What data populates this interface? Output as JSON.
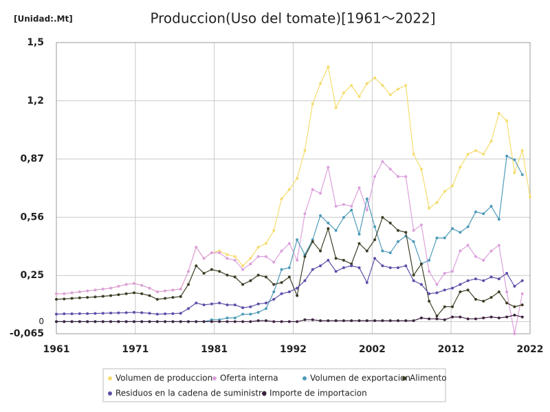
{
  "chart_data": {
    "type": "line",
    "title": "Produccion(Uso del tomate)[1961～2022]",
    "unit_label": "[Unidad:.Mt]",
    "x": [
      1961,
      1962,
      1963,
      1964,
      1965,
      1966,
      1967,
      1968,
      1969,
      1970,
      1971,
      1972,
      1973,
      1974,
      1975,
      1976,
      1977,
      1978,
      1979,
      1980,
      1981,
      1982,
      1983,
      1984,
      1985,
      1986,
      1987,
      1988,
      1989,
      1990,
      1991,
      1992,
      1993,
      1994,
      1995,
      1996,
      1997,
      1998,
      1999,
      2000,
      2001,
      2002,
      2003,
      2004,
      2005,
      2006,
      2007,
      2008,
      2009,
      2010,
      2011,
      2012,
      2013,
      2014,
      2015,
      2016,
      2017,
      2018,
      2019,
      2020,
      2021,
      2022
    ],
    "xlim": [
      1961,
      2022
    ],
    "xticks": [
      1961,
      {
        "value": 1971.17,
        "label": "1971"
      },
      {
        "value": 1981.33,
        "label": "1981"
      },
      {
        "value": 1991.5,
        "label": "1992"
      },
      {
        "value": 2001.67,
        "label": "2002"
      },
      {
        "value": 2011.83,
        "label": "2012"
      },
      2022
    ],
    "ylim": [
      -0.065,
      1.5
    ],
    "yticks": [
      {
        "value": -0.065,
        "label": "-0,065"
      },
      0,
      {
        "value": 0.248,
        "label": "0,25"
      },
      {
        "value": 0.561,
        "label": "0,56"
      },
      {
        "value": 0.874,
        "label": "0,87"
      },
      {
        "value": 1.187,
        "label": "1,2"
      },
      {
        "value": 1.5,
        "label": "1,5"
      }
    ],
    "grid": true,
    "legend": "bottom",
    "series": [
      {
        "name": "Volumen de produccion",
        "color": "#f5dc6e",
        "values": [
          0.15,
          0.15,
          0.155,
          0.16,
          0.165,
          0.17,
          0.175,
          0.18,
          0.19,
          0.2,
          0.205,
          0.195,
          0.18,
          0.16,
          0.165,
          0.17,
          0.175,
          0.27,
          0.4,
          0.34,
          0.37,
          0.38,
          0.36,
          0.35,
          0.3,
          0.34,
          0.4,
          0.42,
          0.49,
          0.66,
          0.71,
          0.77,
          0.92,
          1.17,
          1.28,
          1.37,
          1.15,
          1.23,
          1.27,
          1.21,
          1.28,
          1.31,
          1.27,
          1.22,
          1.25,
          1.27,
          0.9,
          0.82,
          0.61,
          0.64,
          0.7,
          0.73,
          0.83,
          0.9,
          0.92,
          0.9,
          0.97,
          1.12,
          1.08,
          0.8,
          0.92,
          0.67
        ]
      },
      {
        "name": "Oferta interna",
        "color": "#dca0dc",
        "values": [
          0.15,
          0.15,
          0.155,
          0.16,
          0.165,
          0.17,
          0.175,
          0.18,
          0.19,
          0.2,
          0.205,
          0.195,
          0.18,
          0.16,
          0.165,
          0.17,
          0.175,
          0.27,
          0.4,
          0.34,
          0.37,
          0.37,
          0.34,
          0.33,
          0.28,
          0.31,
          0.35,
          0.35,
          0.32,
          0.38,
          0.42,
          0.33,
          0.58,
          0.71,
          0.69,
          0.83,
          0.62,
          0.63,
          0.62,
          0.72,
          0.6,
          0.78,
          0.86,
          0.82,
          0.78,
          0.78,
          0.49,
          0.52,
          0.27,
          0.2,
          0.26,
          0.27,
          0.38,
          0.41,
          0.35,
          0.33,
          0.38,
          0.41,
          0.16,
          -0.065,
          0.15,
          null
        ]
      },
      {
        "name": "Volumen de exportacion",
        "color": "#4d9ab8",
        "values": [
          0,
          0,
          0,
          0,
          0,
          0,
          0,
          0,
          0,
          0,
          0,
          0,
          0,
          0,
          0,
          0,
          0,
          0,
          0,
          0,
          0.01,
          0.01,
          0.02,
          0.02,
          0.04,
          0.04,
          0.05,
          0.07,
          0.16,
          0.28,
          0.29,
          0.44,
          0.36,
          0.44,
          0.57,
          0.53,
          0.49,
          0.56,
          0.6,
          0.47,
          0.66,
          0.51,
          0.38,
          0.37,
          0.43,
          0.46,
          0.43,
          0.31,
          0.33,
          0.45,
          0.45,
          0.5,
          0.48,
          0.51,
          0.59,
          0.58,
          0.62,
          0.55,
          0.89,
          0.87,
          0.79,
          null
        ]
      },
      {
        "name": "Alimento",
        "color": "#3d3d26",
        "values": [
          0.12,
          0.122,
          0.125,
          0.128,
          0.13,
          0.133,
          0.136,
          0.14,
          0.145,
          0.15,
          0.155,
          0.15,
          0.14,
          0.12,
          0.125,
          0.13,
          0.135,
          0.2,
          0.3,
          0.26,
          0.28,
          0.27,
          0.25,
          0.24,
          0.2,
          0.22,
          0.25,
          0.24,
          0.2,
          0.21,
          0.24,
          0.14,
          0.35,
          0.43,
          0.38,
          0.5,
          0.34,
          0.33,
          0.31,
          0.42,
          0.38,
          0.44,
          0.56,
          0.53,
          0.49,
          0.48,
          0.25,
          0.31,
          0.11,
          0.03,
          0.08,
          0.08,
          0.16,
          0.17,
          0.12,
          0.11,
          0.13,
          0.16,
          0.1,
          0.08,
          0.09,
          null
        ]
      },
      {
        "name": "Residuos en la cadena de suministro",
        "color": "#5b4fa8",
        "values": [
          0.04,
          0.042,
          0.042,
          0.043,
          0.043,
          0.044,
          0.045,
          0.046,
          0.047,
          0.048,
          0.05,
          0.048,
          0.045,
          0.04,
          0.042,
          0.043,
          0.045,
          0.07,
          0.1,
          0.09,
          0.095,
          0.1,
          0.09,
          0.09,
          0.075,
          0.08,
          0.095,
          0.1,
          0.12,
          0.15,
          0.16,
          0.18,
          0.22,
          0.28,
          0.3,
          0.33,
          0.27,
          0.29,
          0.3,
          0.29,
          0.21,
          0.34,
          0.3,
          0.29,
          0.29,
          0.3,
          0.22,
          0.2,
          0.15,
          0.155,
          0.17,
          0.18,
          0.2,
          0.22,
          0.23,
          0.22,
          0.24,
          0.23,
          0.26,
          0.19,
          0.22,
          null
        ]
      },
      {
        "name": "Importe de importacion",
        "color": "#3d2340",
        "values": [
          0,
          0,
          0,
          0,
          0,
          0,
          0,
          0,
          0,
          0,
          0,
          0,
          0,
          0,
          0,
          0,
          0,
          0,
          0,
          0,
          0,
          0,
          0,
          0,
          0,
          0,
          0.005,
          0.005,
          0,
          0,
          0,
          0,
          0.01,
          0.01,
          0.005,
          0.005,
          0.005,
          0.005,
          0.005,
          0.005,
          0.005,
          0.005,
          0.005,
          0.005,
          0.005,
          0.005,
          0.005,
          0.02,
          0.015,
          0.015,
          0.01,
          0.025,
          0.025,
          0.015,
          0.015,
          0.02,
          0.025,
          0.02,
          0.025,
          0.035,
          0.025,
          null
        ]
      }
    ]
  }
}
